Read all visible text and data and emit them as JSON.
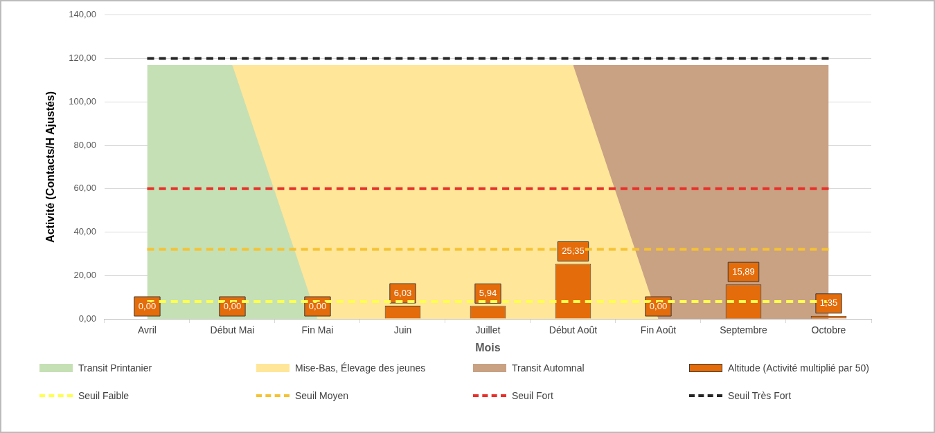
{
  "chart_data": {
    "type": "bar",
    "xlabel": "Mois",
    "ylabel": "Activité (Contacts/H Ajustés)",
    "categories": [
      "Avril",
      "Début Mai",
      "Fin Mai",
      "Juin",
      "Juillet",
      "Début Août",
      "Fin Août",
      "Septembre",
      "Octobre"
    ],
    "series": [
      {
        "name": "Transit Printanier",
        "type": "area",
        "color": "#c5e0b4",
        "values": [
          117,
          117,
          0,
          null,
          null,
          null,
          null,
          null,
          null
        ]
      },
      {
        "name": "Mise-Bas, Élevage des jeunes",
        "type": "area",
        "color": "#ffe699",
        "values": [
          null,
          117,
          117,
          117,
          117,
          117,
          0,
          null,
          null
        ]
      },
      {
        "name": "Transit Automnal",
        "type": "area",
        "color": "#c9a183",
        "values": [
          null,
          null,
          null,
          null,
          null,
          117,
          117,
          117,
          117
        ]
      },
      {
        "name": "Altitude (Activité multiplié par 50)",
        "color": "#e46c0a",
        "values": [
          0,
          0,
          0,
          6.03,
          5.94,
          25.35,
          0,
          15.89,
          1.35
        ],
        "value_labels": [
          "0,00",
          "0,00",
          "0,00",
          "6,03",
          "5,94",
          "25,35",
          "0,00",
          "15,89",
          "1,35"
        ]
      },
      {
        "name": "Seuil Faible",
        "type": "line",
        "color": "#ffff4d",
        "line_style": "dashed",
        "marker": "none",
        "values": [
          8,
          8,
          8,
          8,
          8,
          8,
          8,
          8,
          8
        ]
      },
      {
        "name": "Seuil Moyen",
        "type": "line",
        "color": "#f5c232",
        "line_style": "dashed",
        "marker": "none",
        "values": [
          32,
          32,
          32,
          32,
          32,
          32,
          32,
          32,
          32
        ]
      },
      {
        "name": "Seuil Fort",
        "type": "line",
        "color": "#e8302a",
        "line_style": "dashed",
        "marker": "none",
        "values": [
          60,
          60,
          60,
          60,
          60,
          60,
          60,
          60,
          60
        ]
      },
      {
        "name": "Seuil Très Fort",
        "type": "line",
        "color": "#262626",
        "line_style": "dashed",
        "marker": "none",
        "values": [
          120,
          120,
          120,
          120,
          120,
          120,
          120,
          120,
          120
        ]
      }
    ],
    "ylim": [
      0,
      140
    ],
    "yticks": [
      {
        "value": 0,
        "label": "0,00"
      },
      {
        "value": 20,
        "label": "20,00"
      },
      {
        "value": 40,
        "label": "40,00"
      },
      {
        "value": 60,
        "label": "60,00"
      },
      {
        "value": 80,
        "label": "80,00"
      },
      {
        "value": 100,
        "label": "100,00"
      },
      {
        "value": 120,
        "label": "120,00"
      },
      {
        "value": 140,
        "label": "140,00"
      }
    ],
    "grid": "y",
    "legend": "bottom"
  }
}
